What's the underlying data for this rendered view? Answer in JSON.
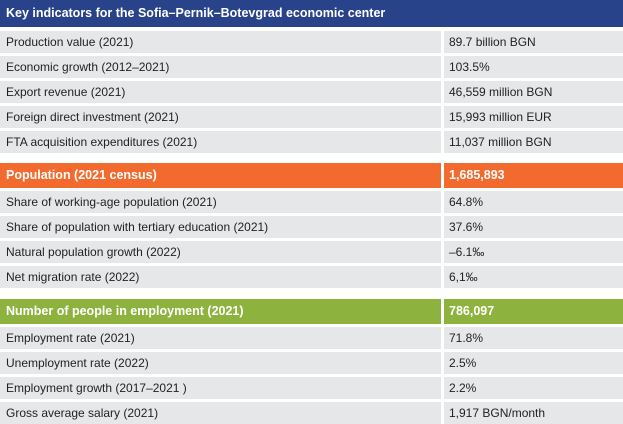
{
  "title": "Key indicators for the Sofia–Pernik–Botevgrad economic center",
  "colors": {
    "title_bg": "#28438a",
    "population_bg": "#f26a2e",
    "employment_bg": "#8db33e",
    "row_bg": "#e6e7e8"
  },
  "economy": {
    "rows": [
      {
        "label": "Production value (2021)",
        "value": "89.7 billion BGN"
      },
      {
        "label": "Economic growth (2012–2021)",
        "value": "103.5%"
      },
      {
        "label": "Export revenue (2021)",
        "value": "46,559 million BGN"
      },
      {
        "label": "Foreign direct investment (2021)",
        "value": "15,993 million EUR"
      },
      {
        "label": "FTA acquisition expenditures (2021)",
        "value": "11,037 million BGN"
      }
    ]
  },
  "population": {
    "header": {
      "label": "Population (2021 census)",
      "value": "1,685,893"
    },
    "rows": [
      {
        "label": "Share of working-age population (2021)",
        "value": "64.8%"
      },
      {
        "label": "Share of population with tertiary education (2021)",
        "value": "37.6%"
      },
      {
        "label": "Natural population growth (2022)",
        "value": "–6.1‰"
      },
      {
        "label": "Net migration rate (2022)",
        "value": "6,1‰"
      }
    ]
  },
  "employment": {
    "header": {
      "label": "Number of people in employment (2021)",
      "value": "786,097"
    },
    "rows": [
      {
        "label": "Employment rate (2021)",
        "value": "71.8%"
      },
      {
        "label": "Unemployment rate (2022)",
        "value": "2.5%"
      },
      {
        "label": "Employment growth (2017–2021 )",
        "value": "2.2%"
      },
      {
        "label": "Gross average salary (2021)",
        "value": "1,917 BGN/month"
      }
    ]
  }
}
